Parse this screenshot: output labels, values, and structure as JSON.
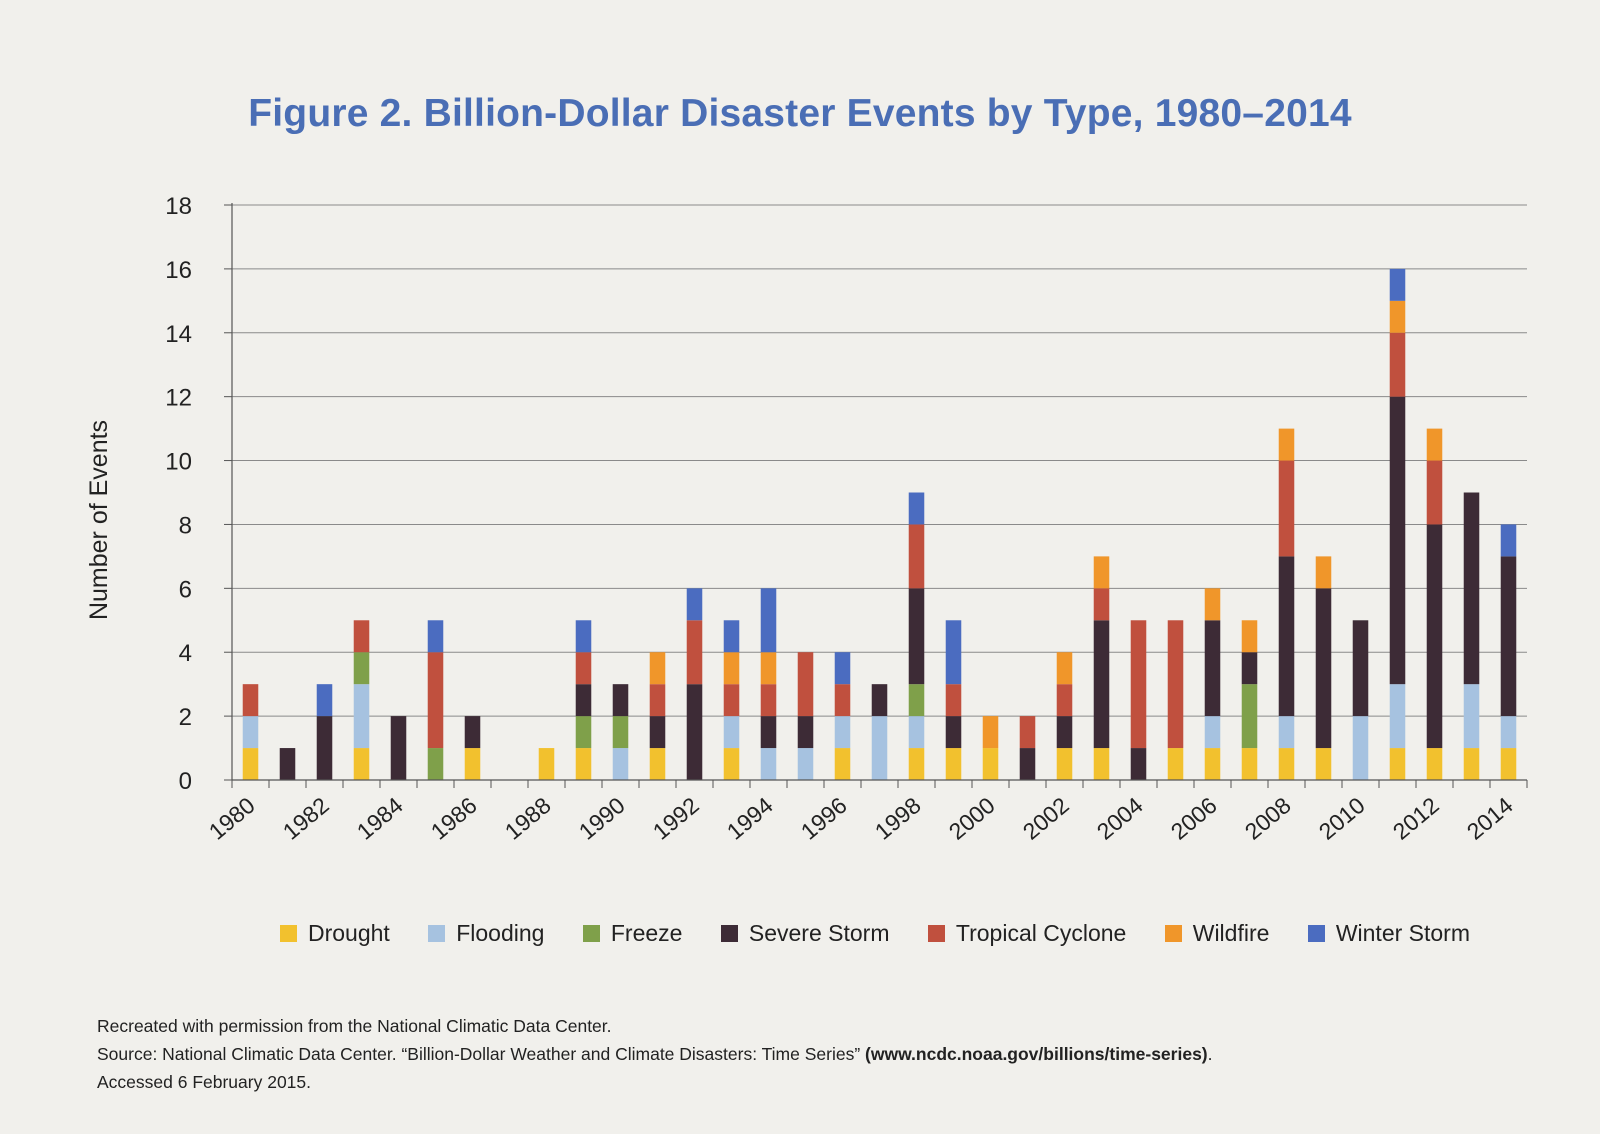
{
  "chart_data": {
    "type": "bar",
    "stacked": true,
    "title": "Figure 2. Billion-Dollar Disaster Events by Type, 1980–2014",
    "xlabel": "",
    "ylabel": "Number of Events",
    "ylim": [
      0,
      18
    ],
    "yticks": [
      0,
      2,
      4,
      6,
      8,
      10,
      12,
      14,
      16,
      18
    ],
    "grid": true,
    "legend_position": "bottom",
    "categories": [
      "1980",
      "1981",
      "1982",
      "1983",
      "1984",
      "1985",
      "1986",
      "1987",
      "1988",
      "1989",
      "1990",
      "1991",
      "1992",
      "1993",
      "1994",
      "1995",
      "1996",
      "1997",
      "1998",
      "1999",
      "2000",
      "2001",
      "2002",
      "2003",
      "2004",
      "2005",
      "2006",
      "2007",
      "2008",
      "2009",
      "2010",
      "2011",
      "2012",
      "2013",
      "2014"
    ],
    "xtick_labels": [
      "1980",
      "1982",
      "1984",
      "1986",
      "1988",
      "1990",
      "1992",
      "1994",
      "1996",
      "1998",
      "2000",
      "2002",
      "2004",
      "2006",
      "2008",
      "2010",
      "2012",
      "2014"
    ],
    "series": [
      {
        "name": "Drought",
        "color": "#f2c12e",
        "values": [
          1,
          0,
          0,
          1,
          0,
          0,
          1,
          0,
          1,
          1,
          0,
          1,
          0,
          1,
          0,
          0,
          1,
          0,
          1,
          1,
          1,
          0,
          1,
          1,
          0,
          1,
          1,
          1,
          1,
          1,
          0,
          1,
          1,
          1,
          1
        ]
      },
      {
        "name": "Flooding",
        "color": "#a6c2e0",
        "values": [
          1,
          0,
          0,
          2,
          0,
          0,
          0,
          0,
          0,
          0,
          1,
          0,
          0,
          1,
          1,
          1,
          1,
          2,
          1,
          0,
          0,
          0,
          0,
          0,
          0,
          0,
          1,
          0,
          1,
          0,
          2,
          2,
          0,
          2,
          1
        ]
      },
      {
        "name": "Freeze",
        "color": "#7fa04a",
        "values": [
          0,
          0,
          0,
          1,
          0,
          1,
          0,
          0,
          0,
          1,
          1,
          0,
          0,
          0,
          0,
          0,
          0,
          0,
          1,
          0,
          0,
          0,
          0,
          0,
          0,
          0,
          0,
          2,
          0,
          0,
          0,
          0,
          0,
          0,
          0
        ]
      },
      {
        "name": "Severe Storm",
        "color": "#3d2b36",
        "values": [
          0,
          1,
          2,
          0,
          2,
          0,
          1,
          0,
          0,
          1,
          1,
          1,
          3,
          0,
          1,
          1,
          0,
          1,
          3,
          1,
          0,
          1,
          1,
          4,
          1,
          0,
          3,
          1,
          5,
          5,
          3,
          9,
          7,
          6,
          5
        ]
      },
      {
        "name": "Tropical Cyclone",
        "color": "#c0503e",
        "values": [
          1,
          0,
          0,
          1,
          0,
          3,
          0,
          0,
          0,
          1,
          0,
          1,
          2,
          1,
          1,
          2,
          1,
          0,
          2,
          1,
          0,
          1,
          1,
          1,
          4,
          4,
          0,
          0,
          3,
          0,
          0,
          2,
          2,
          0,
          0
        ]
      },
      {
        "name": "Wildfire",
        "color": "#f0962a",
        "values": [
          0,
          0,
          0,
          0,
          0,
          0,
          0,
          0,
          0,
          0,
          0,
          1,
          0,
          1,
          1,
          0,
          0,
          0,
          0,
          0,
          1,
          0,
          1,
          1,
          0,
          0,
          1,
          1,
          1,
          1,
          0,
          1,
          1,
          0,
          0
        ]
      },
      {
        "name": "Winter Storm",
        "color": "#4b6cc0",
        "values": [
          0,
          0,
          1,
          0,
          0,
          1,
          0,
          0,
          0,
          1,
          0,
          0,
          1,
          1,
          2,
          0,
          1,
          0,
          1,
          2,
          0,
          0,
          0,
          0,
          0,
          0,
          0,
          0,
          0,
          0,
          0,
          1,
          0,
          0,
          1
        ]
      }
    ]
  },
  "source": {
    "line1": "Recreated with permission from the National Climatic Data Center.",
    "line2_text": "Source: National Climatic Data Center. “Billion-Dollar Weather and Climate Disasters: Time Series” ",
    "line2_url": "(www.ncdc.noaa.gov/billions/time-series)",
    "line2_end": ".",
    "line3": "Accessed 6 February 2015."
  }
}
